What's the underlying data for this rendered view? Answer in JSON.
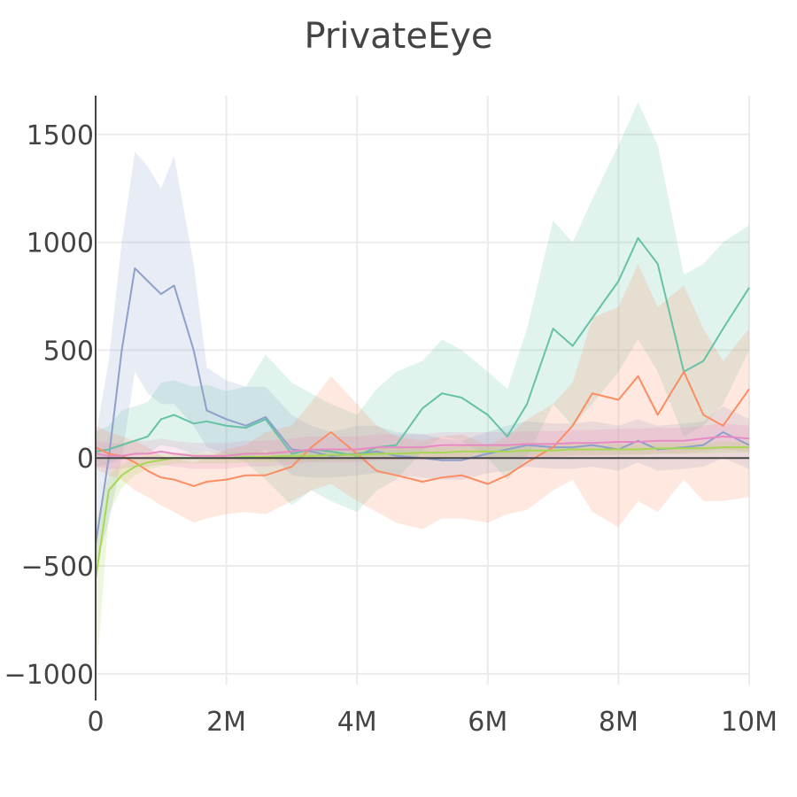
{
  "chart_data": {
    "type": "line",
    "title": "PrivateEye",
    "xlabel": "",
    "ylabel": "",
    "xlim": [
      0,
      10000000
    ],
    "ylim": [
      -1050,
      1680
    ],
    "x_ticks": [
      {
        "value": 0,
        "label": "0"
      },
      {
        "value": 2000000,
        "label": "2M"
      },
      {
        "value": 4000000,
        "label": "4M"
      },
      {
        "value": 6000000,
        "label": "6M"
      },
      {
        "value": 8000000,
        "label": "8M"
      },
      {
        "value": 10000000,
        "label": "10M"
      }
    ],
    "y_ticks": [
      {
        "value": 1500,
        "label": "1500"
      },
      {
        "value": 1000,
        "label": "1000"
      },
      {
        "value": 500,
        "label": "500"
      },
      {
        "value": 0,
        "label": "0"
      },
      {
        "value": -500,
        "label": "−500"
      },
      {
        "value": -1000,
        "label": "−1000"
      }
    ],
    "x": [
      0,
      200000,
      400000,
      600000,
      800000,
      1000000,
      1200000,
      1500000,
      1700000,
      2000000,
      2300000,
      2600000,
      3000000,
      3300000,
      3600000,
      4000000,
      4300000,
      4600000,
      5000000,
      5300000,
      5600000,
      6000000,
      6300000,
      6600000,
      7000000,
      7300000,
      7600000,
      8000000,
      8300000,
      8600000,
      9000000,
      9300000,
      9600000,
      10000000
    ],
    "series": [
      {
        "name": "series-blue",
        "color": "#8da0cb",
        "values": [
          -400,
          0,
          500,
          880,
          820,
          760,
          800,
          500,
          220,
          180,
          150,
          190,
          40,
          30,
          10,
          20,
          30,
          10,
          0,
          -10,
          -10,
          20,
          40,
          60,
          50,
          50,
          60,
          40,
          80,
          40,
          50,
          60,
          120,
          60
        ],
        "upper": [
          100,
          450,
          1000,
          1420,
          1350,
          1250,
          1400,
          900,
          420,
          360,
          330,
          330,
          200,
          150,
          120,
          150,
          150,
          120,
          110,
          90,
          80,
          120,
          150,
          170,
          160,
          160,
          170,
          150,
          180,
          150,
          160,
          170,
          240,
          180
        ],
        "lower": [
          -500,
          -300,
          0,
          400,
          300,
          250,
          250,
          150,
          50,
          20,
          -10,
          40,
          -80,
          -90,
          -90,
          -80,
          -70,
          -80,
          -90,
          -100,
          -100,
          -70,
          -60,
          -40,
          -50,
          -50,
          -40,
          -60,
          -20,
          -60,
          -50,
          -40,
          0,
          -50
        ]
      },
      {
        "name": "series-green",
        "color": "#66c2a5",
        "values": [
          30,
          40,
          60,
          80,
          100,
          180,
          200,
          160,
          170,
          150,
          140,
          180,
          20,
          40,
          30,
          10,
          50,
          60,
          230,
          300,
          280,
          200,
          100,
          250,
          600,
          520,
          650,
          820,
          1020,
          900,
          400,
          450,
          600,
          790
        ],
        "upper": [
          120,
          150,
          220,
          240,
          260,
          350,
          360,
          330,
          340,
          310,
          330,
          480,
          350,
          300,
          250,
          200,
          320,
          400,
          450,
          550,
          500,
          400,
          320,
          600,
          1100,
          1000,
          1200,
          1450,
          1650,
          1450,
          850,
          900,
          1000,
          1080
        ],
        "lower": [
          -40,
          -30,
          0,
          10,
          20,
          60,
          50,
          20,
          30,
          10,
          -20,
          -100,
          -220,
          -150,
          -200,
          -250,
          -150,
          -100,
          30,
          100,
          80,
          0,
          -100,
          0,
          250,
          150,
          250,
          400,
          550,
          400,
          100,
          150,
          250,
          500
        ]
      },
      {
        "name": "series-orange",
        "color": "#fc8d62",
        "values": [
          50,
          20,
          10,
          -20,
          -60,
          -90,
          -100,
          -130,
          -110,
          -100,
          -80,
          -80,
          -40,
          50,
          120,
          20,
          -60,
          -80,
          -110,
          -90,
          -80,
          -120,
          -80,
          -20,
          50,
          150,
          300,
          270,
          380,
          200,
          400,
          200,
          150,
          320
        ],
        "upper": [
          150,
          120,
          100,
          80,
          50,
          10,
          0,
          -20,
          0,
          40,
          60,
          120,
          150,
          260,
          380,
          250,
          150,
          100,
          80,
          100,
          110,
          60,
          100,
          180,
          250,
          350,
          650,
          700,
          900,
          700,
          800,
          600,
          450,
          600
        ],
        "lower": [
          -50,
          -80,
          -100,
          -150,
          -180,
          -220,
          -250,
          -300,
          -280,
          -260,
          -250,
          -260,
          -200,
          -150,
          -120,
          -200,
          -250,
          -300,
          -330,
          -280,
          -280,
          -300,
          -260,
          -240,
          -150,
          -100,
          -250,
          -320,
          -200,
          -250,
          -100,
          -200,
          -200,
          -180
        ]
      },
      {
        "name": "series-pink",
        "color": "#e78ac3",
        "values": [
          20,
          10,
          10,
          20,
          20,
          30,
          20,
          10,
          10,
          10,
          20,
          20,
          30,
          40,
          40,
          40,
          50,
          50,
          50,
          60,
          60,
          60,
          60,
          65,
          65,
          70,
          70,
          75,
          75,
          80,
          80,
          90,
          100,
          90
        ],
        "upper": [
          80,
          70,
          70,
          80,
          80,
          90,
          80,
          70,
          70,
          70,
          80,
          80,
          90,
          100,
          100,
          100,
          110,
          110,
          110,
          120,
          120,
          120,
          120,
          125,
          125,
          130,
          130,
          135,
          135,
          140,
          140,
          150,
          160,
          150
        ],
        "lower": [
          -40,
          -50,
          -50,
          -40,
          -40,
          -30,
          -40,
          -50,
          -50,
          -50,
          -40,
          -40,
          -30,
          -20,
          -20,
          -20,
          -10,
          -10,
          -10,
          0,
          0,
          0,
          0,
          5,
          5,
          10,
          10,
          15,
          15,
          20,
          20,
          30,
          40,
          30
        ]
      },
      {
        "name": "series-lime",
        "color": "#a6d854",
        "values": [
          -560,
          -150,
          -80,
          -40,
          -20,
          -10,
          0,
          0,
          0,
          0,
          5,
          5,
          10,
          10,
          15,
          15,
          20,
          20,
          25,
          25,
          30,
          30,
          30,
          35,
          35,
          40,
          40,
          40,
          40,
          45,
          45,
          45,
          50,
          50
        ],
        "upper": [
          -300,
          -80,
          -30,
          0,
          10,
          20,
          25,
          25,
          25,
          25,
          30,
          30,
          35,
          35,
          40,
          40,
          45,
          45,
          50,
          50,
          55,
          55,
          55,
          60,
          60,
          65,
          65,
          65,
          65,
          70,
          70,
          70,
          75,
          75
        ],
        "lower": [
          -1050,
          -260,
          -140,
          -80,
          -50,
          -40,
          -25,
          -25,
          -25,
          -25,
          -20,
          -20,
          -15,
          -15,
          -10,
          -10,
          -5,
          -5,
          0,
          0,
          5,
          5,
          5,
          10,
          10,
          15,
          15,
          15,
          15,
          20,
          20,
          20,
          25,
          25
        ]
      }
    ]
  }
}
